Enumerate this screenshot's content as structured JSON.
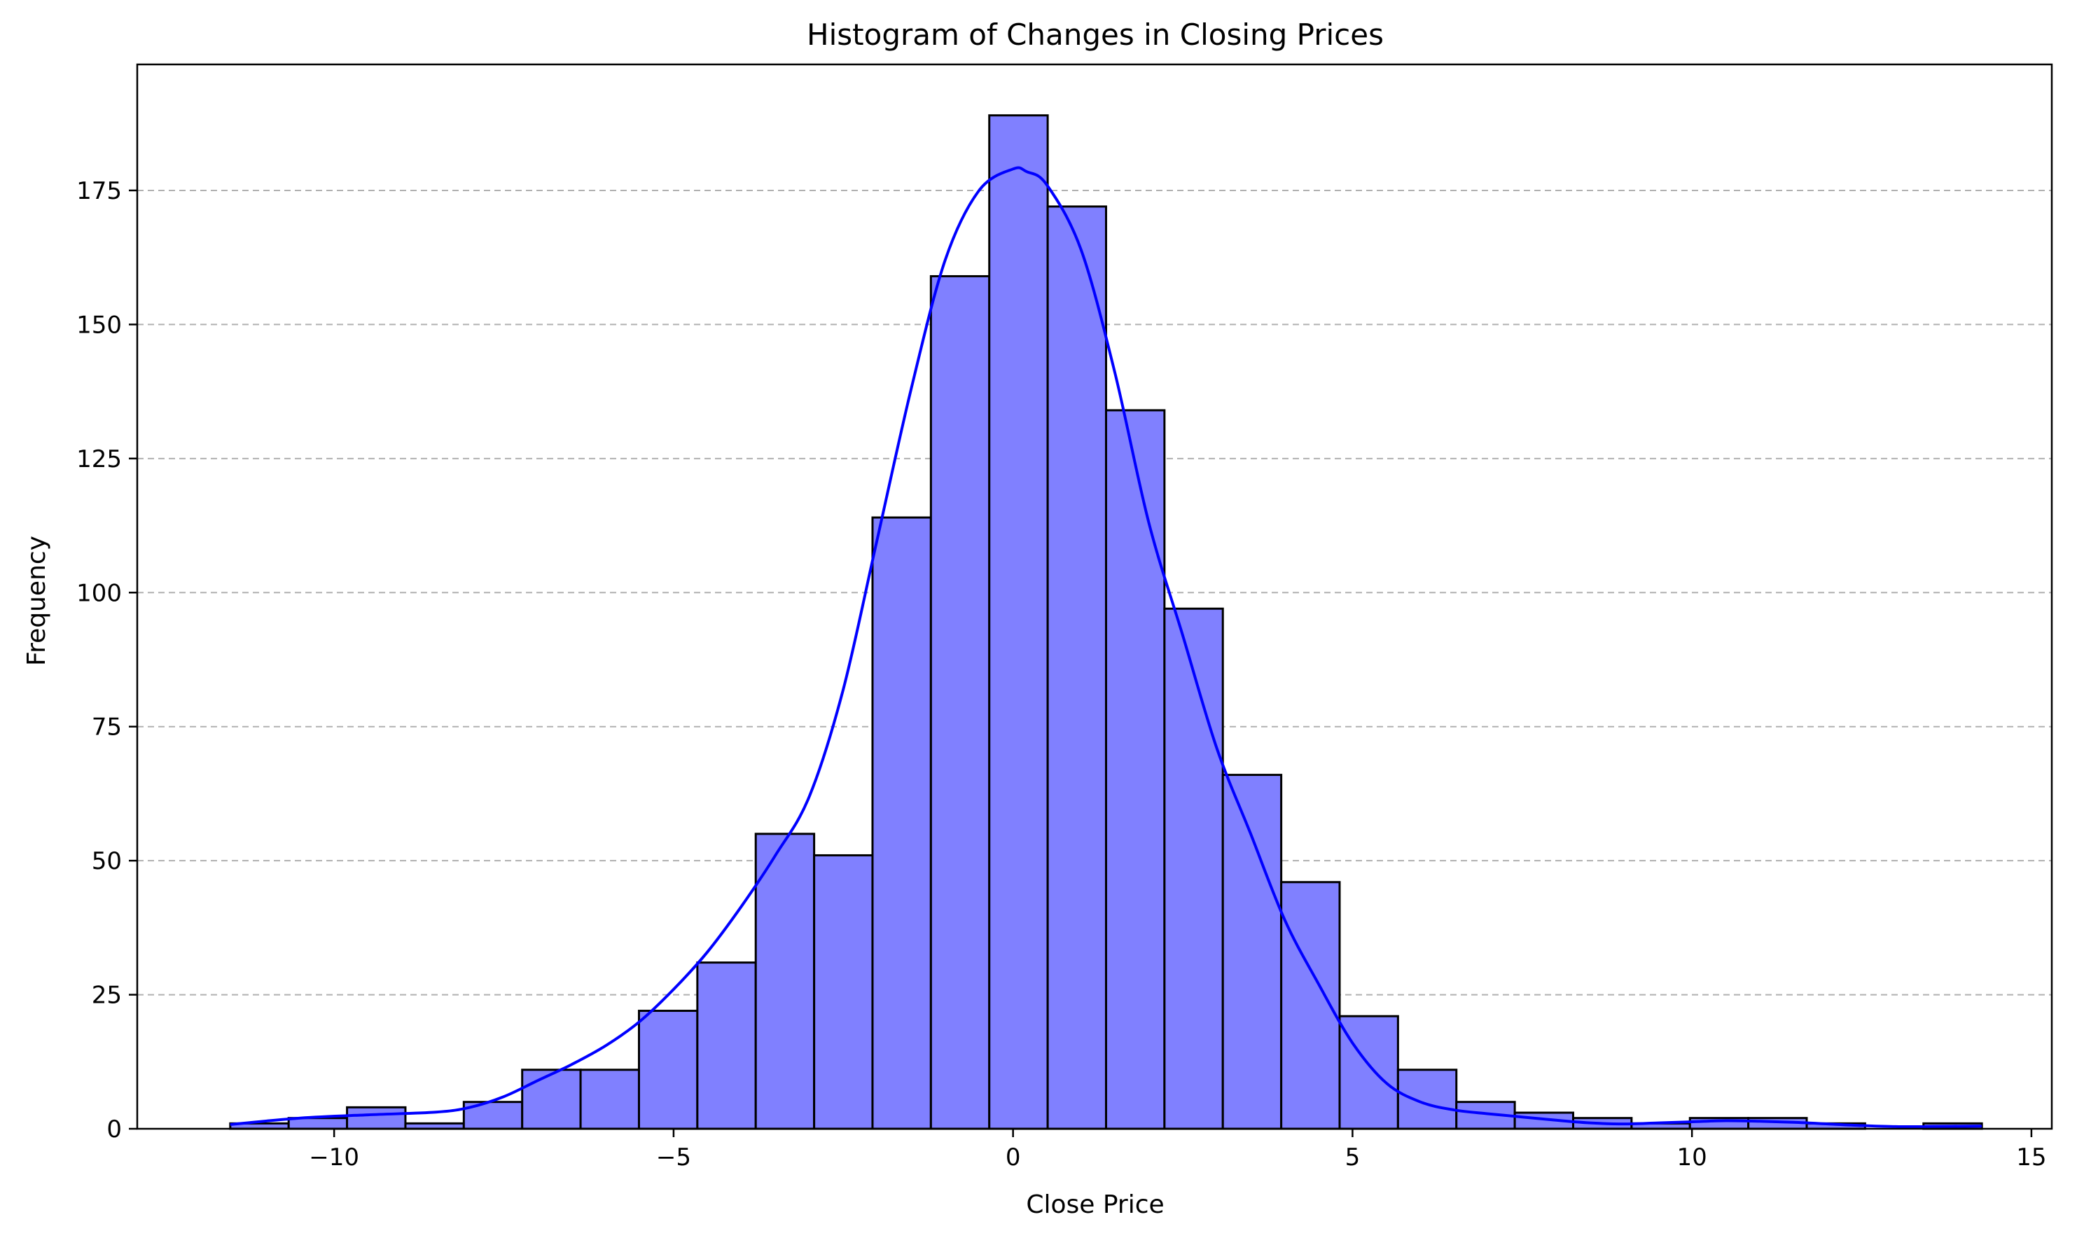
{
  "chart_data": {
    "type": "bar",
    "title": "Histogram of Changes in Closing Prices",
    "xlabel": "Close Price",
    "ylabel": "Frequency",
    "xlim": [
      -12.9,
      15.3
    ],
    "ylim": [
      0,
      198.5
    ],
    "xticks": [
      -10,
      -5,
      0,
      5,
      10,
      15
    ],
    "yticks": [
      0,
      25,
      50,
      75,
      100,
      125,
      150,
      175
    ],
    "grid": {
      "axis": "y",
      "style": "dashed",
      "color": "#b0b0b0"
    },
    "bins": [
      {
        "x0": -11.53,
        "x1": -10.67,
        "count": 1
      },
      {
        "x0": -10.67,
        "x1": -9.81,
        "count": 2
      },
      {
        "x0": -9.81,
        "x1": -8.95,
        "count": 4
      },
      {
        "x0": -8.95,
        "x1": -8.09,
        "count": 1
      },
      {
        "x0": -8.09,
        "x1": -7.23,
        "count": 5
      },
      {
        "x0": -7.23,
        "x1": -6.37,
        "count": 11
      },
      {
        "x0": -6.37,
        "x1": -5.51,
        "count": 11
      },
      {
        "x0": -5.51,
        "x1": -4.65,
        "count": 22
      },
      {
        "x0": -4.65,
        "x1": -3.79,
        "count": 31
      },
      {
        "x0": -3.79,
        "x1": -2.93,
        "count": 55
      },
      {
        "x0": -2.93,
        "x1": -2.07,
        "count": 51
      },
      {
        "x0": -2.07,
        "x1": -1.21,
        "count": 114
      },
      {
        "x0": -1.21,
        "x1": -0.35,
        "count": 159
      },
      {
        "x0": -0.35,
        "x1": 0.51,
        "count": 189
      },
      {
        "x0": 0.51,
        "x1": 1.37,
        "count": 172
      },
      {
        "x0": 1.37,
        "x1": 2.23,
        "count": 134
      },
      {
        "x0": 2.23,
        "x1": 3.09,
        "count": 97
      },
      {
        "x0": 3.09,
        "x1": 3.95,
        "count": 66
      },
      {
        "x0": 3.95,
        "x1": 4.81,
        "count": 46
      },
      {
        "x0": 4.81,
        "x1": 5.67,
        "count": 21
      },
      {
        "x0": 5.67,
        "x1": 6.53,
        "count": 11
      },
      {
        "x0": 6.53,
        "x1": 7.39,
        "count": 5
      },
      {
        "x0": 7.39,
        "x1": 8.25,
        "count": 3
      },
      {
        "x0": 8.25,
        "x1": 9.11,
        "count": 2
      },
      {
        "x0": 9.11,
        "x1": 9.97,
        "count": 1
      },
      {
        "x0": 9.97,
        "x1": 10.83,
        "count": 2
      },
      {
        "x0": 10.83,
        "x1": 11.69,
        "count": 2
      },
      {
        "x0": 11.69,
        "x1": 12.55,
        "count": 1
      },
      {
        "x0": 12.55,
        "x1": 13.41,
        "count": 0
      },
      {
        "x0": 13.41,
        "x1": 14.27,
        "count": 1
      }
    ],
    "kde": {
      "x": [
        -11.53,
        -10.5,
        -9.5,
        -8.5,
        -8.0,
        -7.5,
        -7.0,
        -6.5,
        -6.0,
        -5.5,
        -5.0,
        -4.5,
        -4.0,
        -3.5,
        -3.0,
        -2.5,
        -2.0,
        -1.5,
        -1.0,
        -0.5,
        0.0,
        0.2,
        0.5,
        1.0,
        1.5,
        2.0,
        2.5,
        3.0,
        3.5,
        4.0,
        4.5,
        5.0,
        5.5,
        6.0,
        6.5,
        7.0,
        7.5,
        8.0,
        8.5,
        9.0,
        9.5,
        10.0,
        10.5,
        11.0,
        11.5,
        12.0,
        12.5,
        13.0,
        13.5,
        14.27
      ],
      "y": [
        0.8,
        2.0,
        2.6,
        3.1,
        4.0,
        6.0,
        9.0,
        12.0,
        15.5,
        20.0,
        26.0,
        33.0,
        41.5,
        51.0,
        62.0,
        82.0,
        110.0,
        138.0,
        162.0,
        175.0,
        179.0,
        178.5,
        176.0,
        164.0,
        141.0,
        113.0,
        92.0,
        71.0,
        55.0,
        39.0,
        27.0,
        16.0,
        8.5,
        5.0,
        3.5,
        2.8,
        2.2,
        1.6,
        1.1,
        0.9,
        1.1,
        1.3,
        1.5,
        1.4,
        1.2,
        0.9,
        0.6,
        0.4,
        0.4,
        0.5
      ]
    },
    "colors": {
      "bar_fill": "#8080ff",
      "bar_edge": "#000000",
      "kde_line": "#0000ff",
      "grid": "#b0b0b0",
      "axes": "#000000"
    }
  }
}
